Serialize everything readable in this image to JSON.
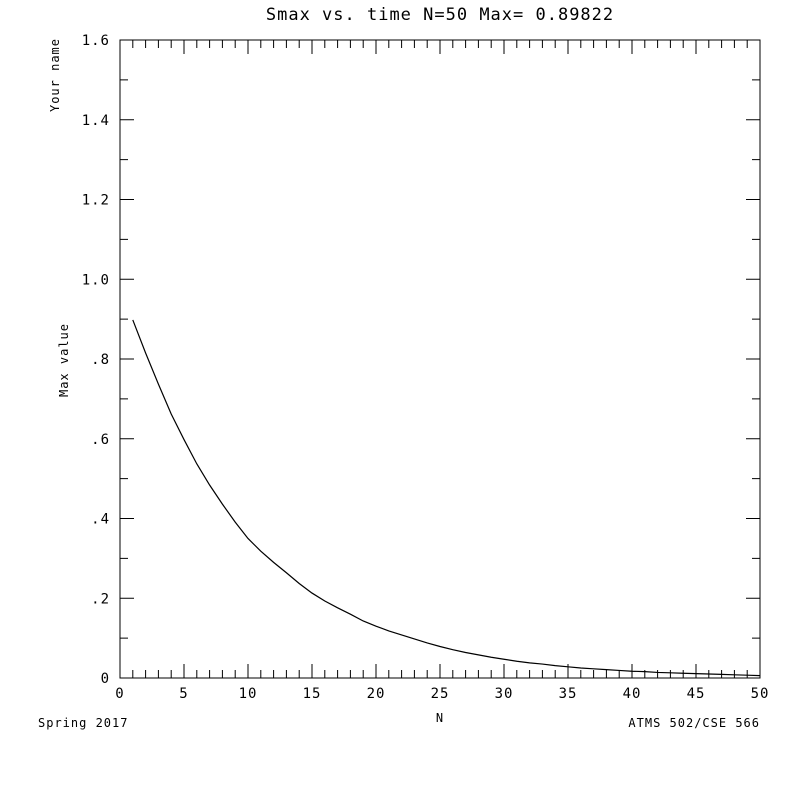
{
  "chart_data": {
    "type": "line",
    "title": "Smax vs. time  N=50 Max= 0.89822",
    "xlabel": "N",
    "ylabel": "Max value",
    "corner_label_top_left": "Your name",
    "footer_left": "Spring 2017",
    "footer_right": "ATMS 502/CSE 566",
    "xlim": [
      0,
      50
    ],
    "ylim": [
      0,
      1.6
    ],
    "grid": false,
    "x_ticks": [
      {
        "value": 0,
        "label": "0"
      },
      {
        "value": 5,
        "label": "5"
      },
      {
        "value": 10,
        "label": "10"
      },
      {
        "value": 15,
        "label": "15"
      },
      {
        "value": 20,
        "label": "20"
      },
      {
        "value": 25,
        "label": "25"
      },
      {
        "value": 30,
        "label": "30"
      },
      {
        "value": 35,
        "label": "35"
      },
      {
        "value": 40,
        "label": "40"
      },
      {
        "value": 45,
        "label": "45"
      },
      {
        "value": 50,
        "label": "50"
      }
    ],
    "y_ticks": [
      {
        "value": 0,
        "label": "0"
      },
      {
        "value": 0.2,
        "label": ".2"
      },
      {
        "value": 0.4,
        "label": ".4"
      },
      {
        "value": 0.6,
        "label": ".6"
      },
      {
        "value": 0.8,
        "label": ".8"
      },
      {
        "value": 1.0,
        "label": "1.0"
      },
      {
        "value": 1.2,
        "label": "1.2"
      },
      {
        "value": 1.4,
        "label": "1.4"
      },
      {
        "value": 1.6,
        "label": "1.6"
      }
    ],
    "series": [
      {
        "x": [
          1,
          2,
          3,
          4,
          5,
          6,
          7,
          8,
          9,
          10,
          11,
          12,
          13,
          14,
          15,
          16,
          17,
          18,
          19,
          20,
          21,
          22,
          23,
          24,
          25,
          26,
          27,
          28,
          29,
          30,
          31,
          32,
          33,
          34,
          35,
          36,
          37,
          38,
          39,
          40,
          41,
          42,
          43,
          44,
          45,
          46,
          47,
          48,
          49,
          50
        ],
        "values": [
          0.898,
          0.815,
          0.737,
          0.662,
          0.598,
          0.537,
          0.484,
          0.436,
          0.391,
          0.35,
          0.318,
          0.29,
          0.264,
          0.237,
          0.213,
          0.193,
          0.176,
          0.16,
          0.143,
          0.13,
          0.118,
          0.108,
          0.098,
          0.088,
          0.079,
          0.071,
          0.064,
          0.058,
          0.052,
          0.047,
          0.042,
          0.038,
          0.035,
          0.031,
          0.028,
          0.025,
          0.023,
          0.021,
          0.019,
          0.017,
          0.016,
          0.014,
          0.013,
          0.012,
          0.011,
          0.01,
          0.009,
          0.008,
          0.007,
          0.006
        ]
      }
    ]
  }
}
